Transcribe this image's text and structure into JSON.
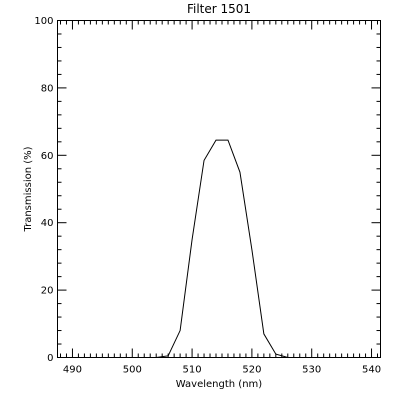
{
  "chart_data": {
    "type": "line",
    "title": "Filter 1501",
    "xlabel": "Wavelength (nm)",
    "ylabel": "Transmission (%)",
    "xlim": [
      487.5,
      541.5
    ],
    "ylim": [
      0,
      100
    ],
    "x_ticks": [
      490,
      500,
      510,
      520,
      530,
      540
    ],
    "x_minor_step": 1,
    "y_ticks": [
      0,
      20,
      40,
      60,
      80,
      100
    ],
    "y_minor_step": 4,
    "grid": false,
    "series": [
      {
        "x": [
          500,
          504,
          506,
          508,
          510,
          512,
          514,
          516,
          518,
          520,
          522,
          524,
          526,
          528
        ],
        "y": [
          0,
          0,
          0.5,
          8,
          35,
          58.5,
          64.5,
          64.5,
          55,
          32,
          7,
          1,
          0,
          0
        ]
      }
    ]
  }
}
